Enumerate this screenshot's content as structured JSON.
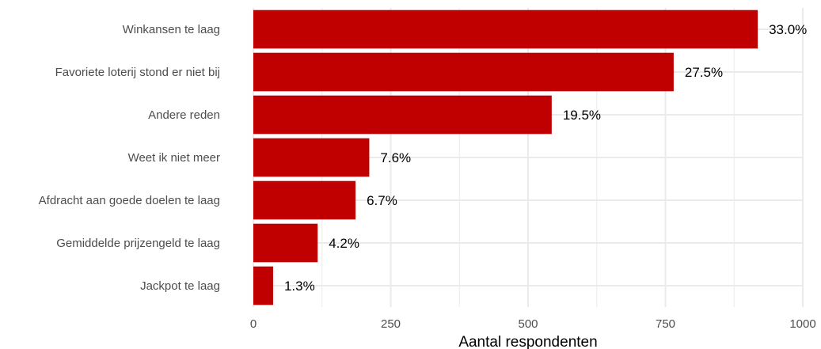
{
  "chart_data": {
    "type": "bar",
    "orientation": "horizontal",
    "categories": [
      "Winkansen te laag",
      "Favoriete loterij stond er niet bij",
      "Andere reden",
      "Weet ik niet meer",
      "Afdracht aan goede doelen te laag",
      "Gemiddelde prijzengeld te laag",
      "Jackpot te laag"
    ],
    "values": [
      918,
      765,
      543,
      211,
      186,
      117,
      36
    ],
    "labels": [
      "33.0%",
      "27.5%",
      "19.5%",
      "7.6%",
      "6.7%",
      "4.2%",
      "1.3%"
    ],
    "xlabel": "Aantal respondenten",
    "ylabel": "",
    "xlim": [
      0,
      1000
    ],
    "xticks": [
      0,
      250,
      500,
      750,
      1000
    ],
    "xtick_labels": [
      "0",
      "250",
      "500",
      "750",
      "1000"
    ],
    "grid": true,
    "bar_color": "#c00000",
    "grid_color": "#ebebeb"
  }
}
